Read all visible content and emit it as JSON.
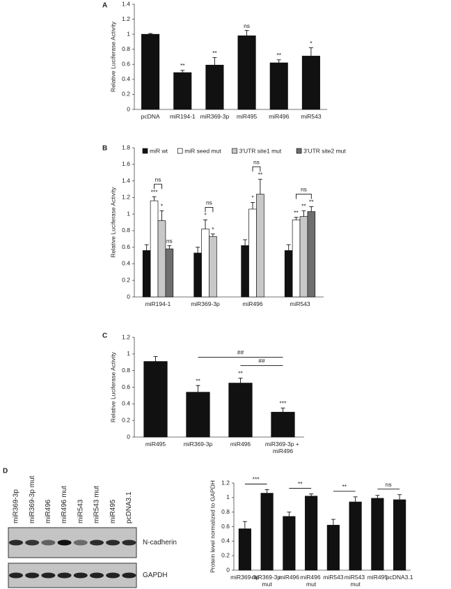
{
  "chart_data": [
    {
      "type": "bar",
      "panel": "A",
      "ylabel": "Relative Luciferase Activity",
      "categories": [
        "pcDNA",
        "miR194-1",
        "miR369-3p",
        "miR495",
        "miR496",
        "miR543"
      ],
      "values": [
        1.0,
        0.49,
        0.59,
        0.98,
        0.62,
        0.71
      ],
      "errors": [
        0.01,
        0.03,
        0.1,
        0.07,
        0.04,
        0.11
      ],
      "annotations": [
        null,
        "**",
        "**",
        "ns",
        "**",
        "*"
      ],
      "color": "#111111",
      "ylim": [
        0,
        1.4
      ],
      "yticks": [
        0,
        0.2,
        0.4,
        0.6,
        0.8,
        1,
        1.2,
        1.4
      ]
    },
    {
      "type": "bar",
      "panel": "B",
      "ylabel": "Relative Luciferase Activity",
      "categories": [
        "miR194-1",
        "miR369-3p",
        "miR496",
        "miR543"
      ],
      "series": [
        {
          "name": "miR wt",
          "color": "#111111",
          "values": [
            0.56,
            0.53,
            0.62,
            0.56
          ],
          "errors": [
            0.07,
            0.07,
            0.07,
            0.07
          ],
          "annotations": [
            null,
            null,
            null,
            null
          ]
        },
        {
          "name": "miR seed mut",
          "color": "#ffffff",
          "values": [
            1.16,
            0.82,
            1.06,
            0.93
          ],
          "errors": [
            0.05,
            0.11,
            0.08,
            0.03
          ],
          "annotations": [
            "***",
            "*",
            "*",
            "**"
          ]
        },
        {
          "name": "3'UTR site1 mut",
          "color": "#c8c8c8",
          "values": [
            0.92,
            0.73,
            1.24,
            0.97
          ],
          "errors": [
            0.12,
            0.03,
            0.18,
            0.07
          ],
          "annotations": [
            "*",
            "*",
            "**",
            "**"
          ]
        },
        {
          "name": "3'UTR site2 mut",
          "color": "#6e6e6e",
          "values": [
            0.58,
            null,
            null,
            1.03
          ],
          "errors": [
            0.04,
            null,
            null,
            0.06
          ],
          "annotations": [
            "ns",
            null,
            null,
            "**"
          ]
        }
      ],
      "brackets": [
        {
          "category": "miR194-1",
          "between": [
            "miR seed mut",
            "3'UTR site1 mut"
          ],
          "label": "ns"
        },
        {
          "category": "miR369-3p",
          "between": [
            "miR seed mut",
            "3'UTR site1 mut"
          ],
          "label": "ns"
        },
        {
          "category": "miR496",
          "between": [
            "miR seed mut",
            "3'UTR site1 mut"
          ],
          "label": "ns"
        },
        {
          "category": "miR543",
          "between": [
            "miR seed mut",
            "3'UTR site2 mut"
          ],
          "label": "ns"
        }
      ],
      "ylim": [
        0,
        1.8
      ],
      "yticks": [
        0,
        0.2,
        0.4,
        0.6,
        0.8,
        1,
        1.2,
        1.4,
        1.6,
        1.8
      ]
    },
    {
      "type": "bar",
      "panel": "C",
      "ylabel": "Relative Luciferase Activity",
      "categories": [
        "miR495",
        "miR369-3p",
        "miR496",
        "miR369-3p + miR496"
      ],
      "values": [
        0.91,
        0.54,
        0.65,
        0.3
      ],
      "errors": [
        0.06,
        0.08,
        0.06,
        0.05
      ],
      "annotations": [
        null,
        "**",
        "**",
        "***"
      ],
      "color": "#111111",
      "brackets": [
        {
          "between": [
            "miR496",
            "miR369-3p + miR496"
          ],
          "label": "##"
        },
        {
          "between": [
            "miR369-3p",
            "miR369-3p + miR496"
          ],
          "label": "##"
        }
      ],
      "ylim": [
        0,
        1.2
      ],
      "yticks": [
        0,
        0.2,
        0.4,
        0.6,
        0.8,
        1,
        1.2
      ]
    },
    {
      "type": "bar",
      "panel": "D",
      "ylabel": "Protein level normalized to GAPDH",
      "categories": [
        "miR369-3p",
        "miR369-3p mut",
        "miR496",
        "miR496 mut",
        "miR543",
        "miR543 mut",
        "miR495",
        "pcDNA3.1"
      ],
      "values": [
        0.57,
        1.06,
        0.74,
        1.02,
        0.62,
        0.94,
        0.99,
        0.97
      ],
      "errors": [
        0.1,
        0.05,
        0.06,
        0.03,
        0.08,
        0.07,
        0.04,
        0.07
      ],
      "color": "#111111",
      "brackets": [
        {
          "between": [
            "miR369-3p",
            "miR369-3p mut"
          ],
          "label": "***"
        },
        {
          "between": [
            "miR496",
            "miR496 mut"
          ],
          "label": "**"
        },
        {
          "between": [
            "miR543",
            "miR543 mut"
          ],
          "label": "**"
        },
        {
          "between": [
            "miR495",
            "pcDNA3.1"
          ],
          "label": "ns"
        }
      ],
      "ylim": [
        0,
        1.2
      ],
      "yticks": [
        0,
        0.2,
        0.4,
        0.6,
        0.8,
        1,
        1.2
      ]
    }
  ],
  "blot": {
    "lanes": [
      "miR369-3p",
      "miR369-3p mut",
      "miR496",
      "miR496 mut",
      "miR543",
      "miR543 mut",
      "miR495",
      "pcDNA3.1"
    ],
    "bands": [
      "N-cadherin",
      "GAPDH"
    ]
  }
}
